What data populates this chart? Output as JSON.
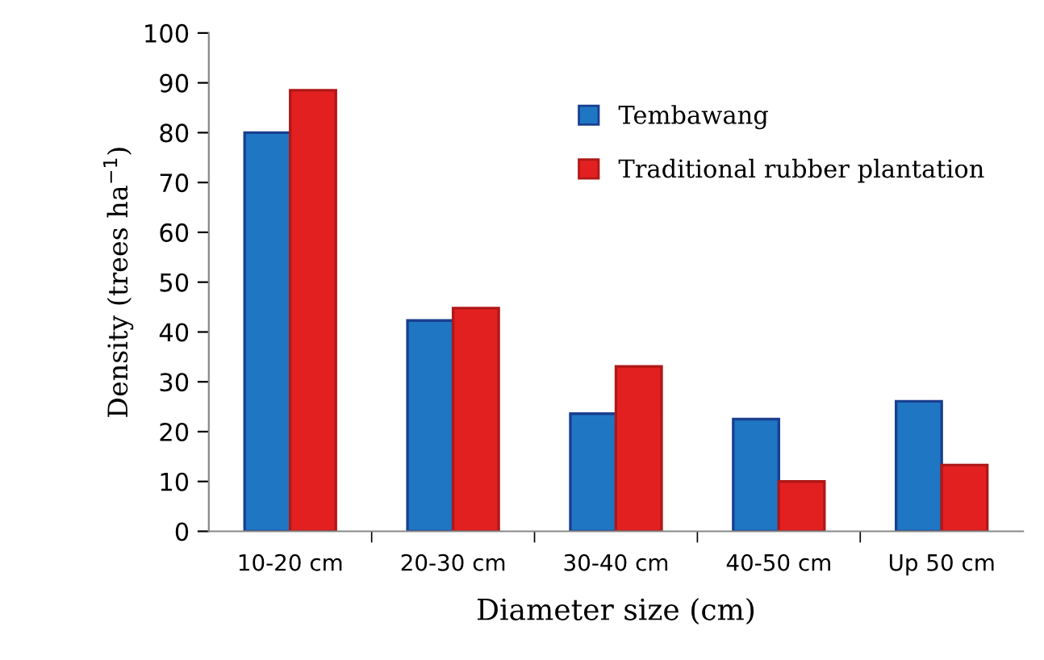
{
  "chart_data": {
    "type": "bar",
    "xlabel": "Diameter size (cm)",
    "ylabel": "Density (trees ha$^{−1}$)",
    "categories": [
      "10-20 cm",
      "20-30 cm",
      "30-40 cm",
      "40-50 cm",
      "Up 50 cm"
    ],
    "series": [
      {
        "name": "Tembawang",
        "color": "#1f77c4",
        "values": [
          80,
          42.3,
          23.6,
          22.5,
          26.1
        ]
      },
      {
        "name": "Traditional rubber plantation",
        "color": "#e32020",
        "values": [
          88.5,
          44.8,
          33.1,
          10,
          13.3
        ]
      }
    ],
    "ylim": [
      0,
      100
    ],
    "yticks": [
      0,
      10,
      20,
      30,
      40,
      50,
      60,
      70,
      80,
      90,
      100
    ],
    "grid": false,
    "legend": "top right"
  }
}
